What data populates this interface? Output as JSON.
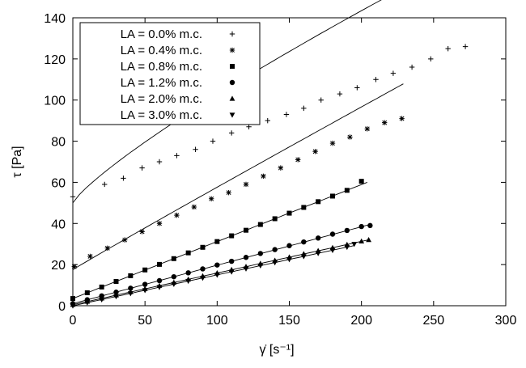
{
  "chart_data": {
    "type": "scatter",
    "xlabel": "γ̇ [s⁻¹]",
    "ylabel": "τ [Pa]",
    "xlim": [
      0,
      300
    ],
    "ylim": [
      0,
      140
    ],
    "xticks": [
      0,
      50,
      100,
      150,
      200,
      250,
      300
    ],
    "yticks": [
      0,
      20,
      40,
      60,
      80,
      100,
      120,
      140
    ],
    "grid": false,
    "legend_position": "top-left",
    "series": [
      {
        "name": "LA = 0.0% m.c.",
        "marker": "plus",
        "x": [
          0,
          22,
          35,
          48,
          60,
          72,
          85,
          97,
          110,
          122,
          135,
          148,
          160,
          172,
          185,
          197,
          210,
          222,
          235,
          248,
          260,
          272
        ],
        "y": [
          53,
          59,
          62,
          67,
          70,
          73,
          76,
          80,
          84,
          87,
          90,
          93,
          96,
          100,
          103,
          106,
          110,
          113,
          116,
          120,
          125,
          126
        ],
        "fit": {
          "type": "power",
          "a": 50,
          "b": 1.15,
          "n": 0.83,
          "x_end": 270
        }
      },
      {
        "name": "LA = 0.4% m.c.",
        "marker": "asterisk",
        "x": [
          1,
          12,
          24,
          36,
          48,
          60,
          72,
          84,
          96,
          108,
          120,
          132,
          144,
          156,
          168,
          180,
          192,
          204,
          216,
          228
        ],
        "y": [
          19,
          24,
          28,
          32,
          36,
          40,
          44,
          48,
          52,
          55,
          59,
          63,
          67,
          71,
          75,
          79,
          82,
          86,
          89,
          91
        ],
        "fit": {
          "type": "power",
          "a": 17.5,
          "b": 0.44,
          "n": 0.98,
          "x_end": 229
        }
      },
      {
        "name": "LA = 0.8% m.c.",
        "marker": "square",
        "x": [
          0,
          10,
          20,
          30,
          40,
          50,
          60,
          70,
          80,
          90,
          100,
          110,
          120,
          130,
          140,
          150,
          160,
          170,
          180,
          190,
          200
        ],
        "y": [
          3.5,
          6.3,
          9.1,
          11.8,
          14.6,
          17.4,
          20.1,
          22.9,
          25.7,
          28.4,
          31.2,
          34,
          36.7,
          39.5,
          42.3,
          45,
          47.8,
          50.6,
          53.3,
          56.1,
          60.5
        ],
        "fit": {
          "type": "linear",
          "a": 3.5,
          "b": 0.277,
          "x_end": 204
        }
      },
      {
        "name": "LA = 1.2% m.c.",
        "marker": "circle",
        "x": [
          0,
          10,
          20,
          30,
          40,
          50,
          60,
          70,
          80,
          90,
          100,
          110,
          120,
          130,
          140,
          150,
          160,
          170,
          180,
          190,
          200,
          206
        ],
        "y": [
          1,
          2.9,
          4.8,
          6.6,
          8.5,
          10.4,
          12.2,
          14.1,
          16,
          17.9,
          19.8,
          21.6,
          23.5,
          25.4,
          27.3,
          29.2,
          31,
          32.9,
          34.8,
          36.6,
          38.5,
          39
        ],
        "fit": {
          "type": "linear",
          "a": 1,
          "b": 0.187,
          "x_end": 206
        }
      },
      {
        "name": "LA = 2.0% m.c.",
        "marker": "triangle-up",
        "x": [
          0,
          10,
          20,
          30,
          40,
          50,
          60,
          70,
          80,
          90,
          100,
          110,
          120,
          130,
          140,
          150,
          160,
          170,
          180,
          190,
          200,
          205
        ],
        "y": [
          0.5,
          2,
          3.6,
          5.1,
          6.7,
          8.2,
          9.7,
          11.3,
          12.8,
          14.4,
          15.9,
          17.5,
          19,
          20.5,
          22,
          23.6,
          25.2,
          26.7,
          28.2,
          29.7,
          31.3,
          32
        ],
        "fit": {
          "type": "linear",
          "a": 0.5,
          "b": 0.154,
          "x_end": 205
        }
      },
      {
        "name": "LA = 3.0% m.c.",
        "marker": "triangle-down",
        "x": [
          0,
          10,
          20,
          30,
          40,
          50,
          60,
          70,
          80,
          90,
          100,
          110,
          120,
          130,
          140,
          150,
          160,
          170,
          180,
          190,
          195
        ],
        "y": [
          0,
          1.5,
          3,
          4.5,
          6,
          7.5,
          9,
          10.5,
          12,
          13.5,
          15,
          16.5,
          18,
          19.5,
          21,
          22.5,
          24,
          25.5,
          27,
          28.5,
          30
        ],
        "fit": {
          "type": "linear",
          "a": 0,
          "b": 0.15,
          "x_end": 195
        }
      }
    ]
  }
}
